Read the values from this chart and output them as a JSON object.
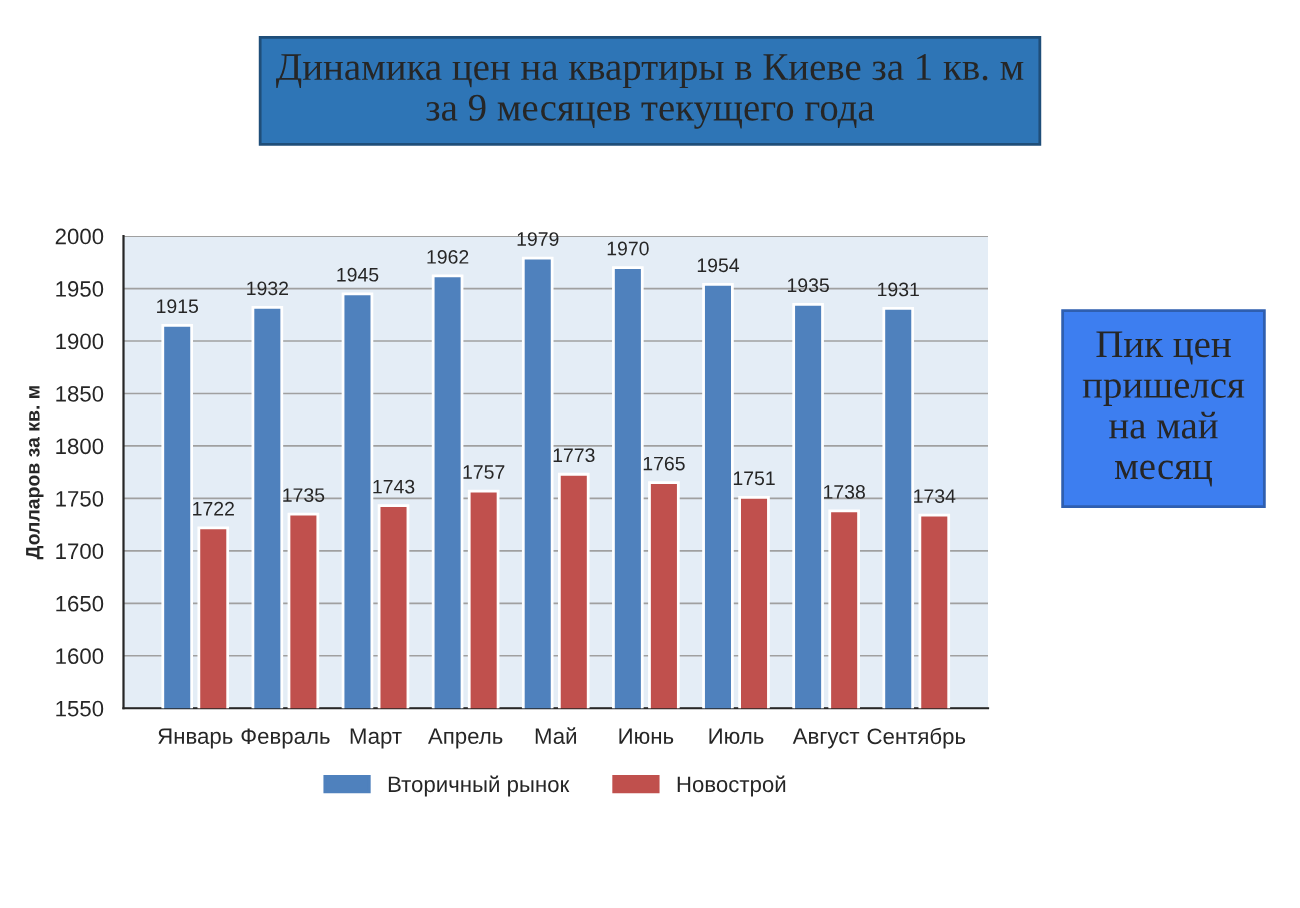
{
  "chart_data": {
    "type": "bar",
    "title": "Динамика цен на квартиры в Киеве за 1 кв. м\nза 9 месяцев текущего года",
    "ylabel": "Долларов за кв. м",
    "categories": [
      "Январь",
      "Февраль",
      "Март",
      "Апрель",
      "Май",
      "Июнь",
      "Июль",
      "Август",
      "Сентябрь"
    ],
    "series": [
      {
        "name": "Вторичный рынок",
        "color": "#4f81bd",
        "values": [
          1915,
          1932,
          1945,
          1962,
          1979,
          1970,
          1954,
          1935,
          1931
        ]
      },
      {
        "name": "Новострой",
        "color": "#c0504d",
        "values": [
          1722,
          1735,
          1743,
          1757,
          1773,
          1765,
          1751,
          1738,
          1734
        ]
      }
    ],
    "ylim": [
      1550,
      2000
    ],
    "yticks": [
      1550,
      1600,
      1650,
      1700,
      1750,
      1800,
      1850,
      1900,
      1950,
      2000
    ],
    "grid": "y",
    "legend": "bottom",
    "data_labels": true,
    "annotations": [
      "Пик цен\nпришелся\nна май\nмесяц"
    ]
  }
}
